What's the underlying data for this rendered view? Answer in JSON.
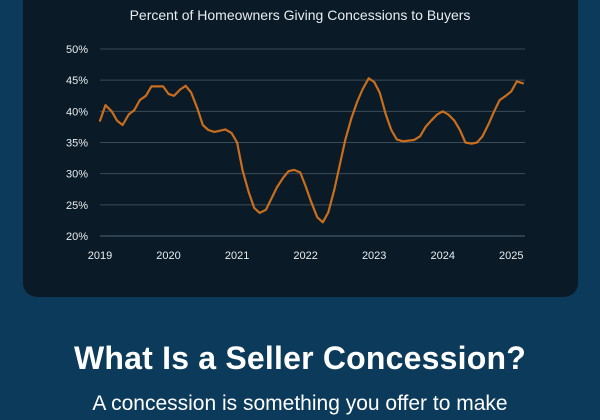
{
  "chart_data": {
    "type": "line",
    "title": "Percent of Homeowners Giving Concessions to Buyers",
    "xlabel": "",
    "ylabel": "",
    "xlim": [
      2019.0,
      2025.2
    ],
    "ylim": [
      20,
      50
    ],
    "x_ticks": [
      2019,
      2020,
      2021,
      2022,
      2023,
      2024,
      2025
    ],
    "y_ticks": [
      20,
      25,
      30,
      35,
      40,
      45,
      50
    ],
    "y_tick_format": "{v}%",
    "grid": true,
    "colors": {
      "line": "#c86e1e",
      "grid": "#3a4c5a",
      "text": "#e8edf1",
      "panel": "#0a1a26"
    },
    "series": [
      {
        "name": "Percent of Homeowners Giving Concessions",
        "x": [
          2019.0,
          2019.08,
          2019.17,
          2019.25,
          2019.33,
          2019.42,
          2019.5,
          2019.58,
          2019.67,
          2019.75,
          2019.83,
          2019.92,
          2020.0,
          2020.08,
          2020.17,
          2020.25,
          2020.33,
          2020.42,
          2020.5,
          2020.58,
          2020.67,
          2020.75,
          2020.83,
          2020.92,
          2021.0,
          2021.08,
          2021.17,
          2021.25,
          2021.33,
          2021.42,
          2021.5,
          2021.58,
          2021.67,
          2021.75,
          2021.83,
          2021.92,
          2022.0,
          2022.08,
          2022.17,
          2022.25,
          2022.33,
          2022.42,
          2022.5,
          2022.58,
          2022.67,
          2022.75,
          2022.83,
          2022.92,
          2023.0,
          2023.08,
          2023.17,
          2023.25,
          2023.33,
          2023.42,
          2023.5,
          2023.58,
          2023.67,
          2023.75,
          2023.83,
          2023.92,
          2024.0,
          2024.08,
          2024.17,
          2024.25,
          2024.33,
          2024.42,
          2024.5,
          2024.58,
          2024.67,
          2024.75,
          2024.83,
          2024.92,
          2025.0,
          2025.08,
          2025.17
        ],
        "values": [
          38.5,
          41.0,
          40.0,
          38.5,
          37.8,
          39.5,
          40.2,
          41.8,
          42.5,
          44.0,
          44.0,
          44.0,
          42.8,
          42.5,
          43.5,
          44.1,
          43.0,
          40.5,
          37.8,
          37.0,
          36.7,
          36.9,
          37.1,
          36.5,
          35.0,
          30.5,
          27.0,
          24.5,
          23.7,
          24.2,
          26.0,
          27.8,
          29.3,
          30.4,
          30.6,
          30.2,
          28.0,
          25.5,
          23.0,
          22.2,
          23.8,
          27.5,
          31.5,
          35.5,
          39.0,
          41.5,
          43.5,
          45.3,
          44.7,
          43.0,
          39.5,
          37.0,
          35.5,
          35.2,
          35.3,
          35.4,
          36.0,
          37.5,
          38.5,
          39.5,
          40.0,
          39.5,
          38.5,
          37.0,
          35.0,
          34.8,
          35.0,
          36.0,
          38.0,
          40.0,
          41.8,
          42.5,
          43.2,
          44.8,
          44.5
        ]
      }
    ]
  },
  "headline": "What Is a Seller Concession?",
  "subtext": "A concession is something you offer to make"
}
